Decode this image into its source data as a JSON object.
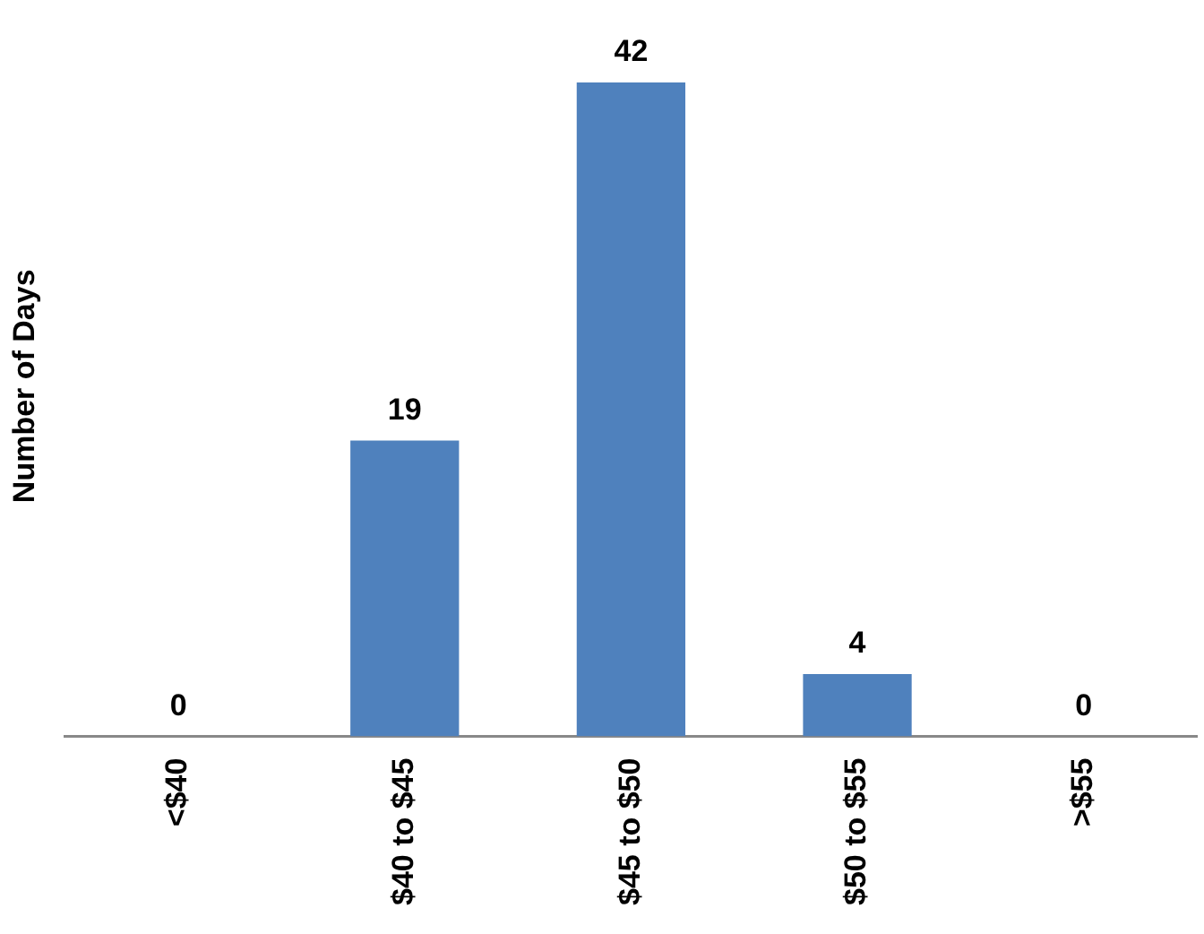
{
  "chart_data": {
    "type": "bar",
    "ylabel": "Number of Days",
    "categories": [
      "<$40",
      "$40 to $45",
      "$45 to $50",
      "$50 to $55",
      ">$55"
    ],
    "values": [
      0,
      19,
      42,
      4,
      0
    ],
    "color": "#4f81bd",
    "data_labels": true,
    "grid": false,
    "legend": false
  }
}
